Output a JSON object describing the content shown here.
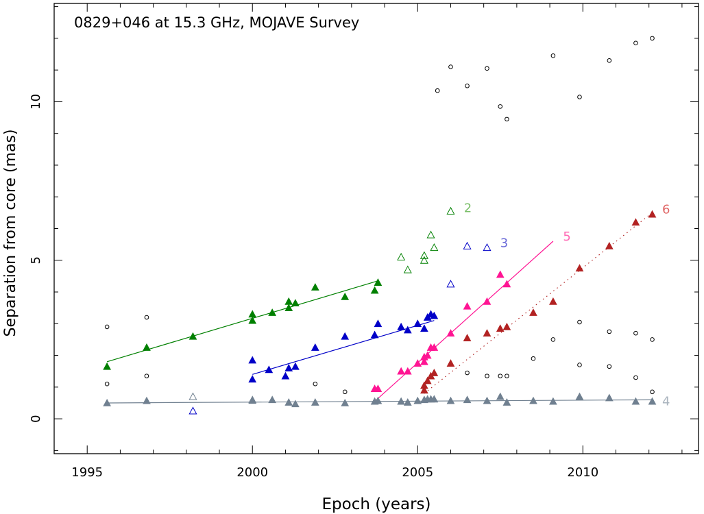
{
  "chart_data": {
    "type": "scatter",
    "title": "0829+046 at 15.3 GHz, MOJAVE Survey",
    "xlabel": "Epoch (years)",
    "ylabel": "Separation from core (mas)",
    "xlim": [
      1994.0,
      2013.5
    ],
    "ylim": [
      -1.1,
      13.1
    ],
    "xticks": [
      1995,
      2000,
      2005,
      2010
    ],
    "yticks": [
      0,
      5,
      10
    ],
    "grid": false,
    "series": [
      {
        "name": "2",
        "color": "#008000",
        "marker": "triangle",
        "points": [
          [
            1995.6,
            1.65
          ],
          [
            1996.8,
            2.25
          ],
          [
            1998.2,
            2.6
          ],
          [
            2000.0,
            3.1
          ],
          [
            2000.0,
            3.3
          ],
          [
            2000.6,
            3.35
          ],
          [
            2001.1,
            3.5
          ],
          [
            2001.1,
            3.7
          ],
          [
            2001.3,
            3.65
          ],
          [
            2001.9,
            4.15
          ],
          [
            2002.8,
            3.85
          ],
          [
            2003.7,
            4.05
          ],
          [
            2003.8,
            4.3
          ]
        ],
        "open_points": [
          [
            2004.5,
            5.1
          ],
          [
            2004.7,
            4.7
          ],
          [
            2005.2,
            5.15
          ],
          [
            2005.2,
            5.0
          ],
          [
            2005.4,
            5.8
          ],
          [
            2005.5,
            5.4
          ],
          [
            2006.0,
            6.55
          ]
        ],
        "fit": [
          [
            1995.6,
            1.8
          ],
          [
            2003.8,
            4.35
          ]
        ],
        "fit_style": "solid"
      },
      {
        "name": "3",
        "color": "#0000c8",
        "marker": "triangle",
        "points": [
          [
            2000.0,
            1.25
          ],
          [
            2000.0,
            1.85
          ],
          [
            2000.5,
            1.55
          ],
          [
            2001.0,
            1.35
          ],
          [
            2001.1,
            1.6
          ],
          [
            2001.3,
            1.65
          ],
          [
            2001.9,
            2.25
          ],
          [
            2002.8,
            2.6
          ],
          [
            2003.7,
            2.65
          ],
          [
            2003.8,
            3.0
          ],
          [
            2004.5,
            2.9
          ],
          [
            2004.7,
            2.8
          ],
          [
            2005.0,
            3.0
          ],
          [
            2005.2,
            2.85
          ],
          [
            2005.3,
            3.2
          ],
          [
            2005.4,
            3.3
          ],
          [
            2005.5,
            3.25
          ]
        ],
        "open_points": [
          [
            1998.2,
            0.25
          ],
          [
            2006.0,
            4.25
          ],
          [
            2006.5,
            5.45
          ],
          [
            2007.1,
            5.4
          ]
        ],
        "fit": [
          [
            2000.0,
            1.4
          ],
          [
            2005.5,
            3.1
          ]
        ],
        "fit_style": "solid"
      },
      {
        "name": "4",
        "color": "#708090",
        "marker": "triangle",
        "points": [
          [
            1995.6,
            0.5
          ],
          [
            1996.8,
            0.57
          ],
          [
            2000.0,
            0.58
          ],
          [
            2000.0,
            0.6
          ],
          [
            2000.6,
            0.6
          ],
          [
            2001.1,
            0.52
          ],
          [
            2001.3,
            0.47
          ],
          [
            2001.9,
            0.52
          ],
          [
            2002.8,
            0.5
          ],
          [
            2003.7,
            0.55
          ],
          [
            2003.8,
            0.57
          ],
          [
            2004.5,
            0.55
          ],
          [
            2004.7,
            0.52
          ],
          [
            2005.0,
            0.57
          ],
          [
            2005.2,
            0.6
          ],
          [
            2005.3,
            0.62
          ],
          [
            2005.4,
            0.62
          ],
          [
            2005.5,
            0.62
          ],
          [
            2006.0,
            0.57
          ],
          [
            2006.5,
            0.6
          ],
          [
            2007.1,
            0.57
          ],
          [
            2007.5,
            0.7
          ],
          [
            2007.7,
            0.52
          ],
          [
            2008.5,
            0.57
          ],
          [
            2009.1,
            0.55
          ],
          [
            2009.9,
            0.7
          ],
          [
            2010.8,
            0.66
          ],
          [
            2011.6,
            0.55
          ],
          [
            2012.1,
            0.55
          ]
        ],
        "open_points": [
          [
            1998.2,
            0.7
          ]
        ],
        "fit": [
          [
            1995.6,
            0.5
          ],
          [
            2012.1,
            0.6
          ]
        ],
        "fit_style": "solid"
      },
      {
        "name": "5",
        "color": "#ff1493",
        "marker": "triangle",
        "points": [
          [
            2003.7,
            0.95
          ],
          [
            2003.8,
            0.95
          ],
          [
            2004.5,
            1.5
          ],
          [
            2004.7,
            1.5
          ],
          [
            2005.0,
            1.75
          ],
          [
            2005.2,
            1.8
          ],
          [
            2005.2,
            1.95
          ],
          [
            2005.3,
            2.0
          ],
          [
            2005.4,
            2.25
          ],
          [
            2005.5,
            2.25
          ],
          [
            2006.0,
            2.7
          ],
          [
            2006.5,
            3.55
          ],
          [
            2007.1,
            3.7
          ],
          [
            2007.5,
            4.55
          ],
          [
            2007.7,
            4.25
          ]
        ],
        "fit": [
          [
            2003.7,
            0.55
          ],
          [
            2009.1,
            5.6
          ]
        ],
        "fit_style": "solid"
      },
      {
        "name": "6",
        "color": "#b22222",
        "marker": "triangle",
        "points": [
          [
            2005.2,
            0.9
          ],
          [
            2005.2,
            1.05
          ],
          [
            2005.3,
            1.2
          ],
          [
            2005.4,
            1.35
          ],
          [
            2005.5,
            1.45
          ],
          [
            2006.0,
            1.75
          ],
          [
            2006.5,
            2.55
          ],
          [
            2007.1,
            2.7
          ],
          [
            2007.5,
            2.85
          ],
          [
            2007.7,
            2.9
          ],
          [
            2008.5,
            3.35
          ],
          [
            2009.1,
            3.7
          ],
          [
            2009.9,
            4.75
          ],
          [
            2010.8,
            5.45
          ],
          [
            2011.6,
            6.2
          ],
          [
            2012.1,
            6.45
          ]
        ],
        "fit": [
          [
            2005.2,
            0.8
          ],
          [
            2012.1,
            6.5
          ]
        ],
        "fit_style": "dotted"
      },
      {
        "name": "",
        "color": "#000000",
        "marker": "circle-open",
        "points": [
          [
            1995.6,
            2.9
          ],
          [
            1995.6,
            1.1
          ],
          [
            1996.8,
            3.2
          ],
          [
            1996.8,
            1.35
          ],
          [
            2001.9,
            1.1
          ],
          [
            2002.8,
            0.85
          ],
          [
            2005.6,
            10.35
          ],
          [
            2006.0,
            11.1
          ],
          [
            2006.5,
            10.5
          ],
          [
            2006.5,
            1.45
          ],
          [
            2007.1,
            11.05
          ],
          [
            2007.1,
            1.35
          ],
          [
            2007.5,
            9.85
          ],
          [
            2007.5,
            1.35
          ],
          [
            2007.7,
            9.45
          ],
          [
            2007.7,
            1.35
          ],
          [
            2008.5,
            1.9
          ],
          [
            2009.1,
            11.45
          ],
          [
            2009.1,
            2.5
          ],
          [
            2009.9,
            10.15
          ],
          [
            2009.9,
            3.05
          ],
          [
            2009.9,
            1.7
          ],
          [
            2010.8,
            11.3
          ],
          [
            2010.8,
            2.75
          ],
          [
            2010.8,
            1.65
          ],
          [
            2011.6,
            11.85
          ],
          [
            2011.6,
            2.7
          ],
          [
            2011.6,
            1.3
          ],
          [
            2012.1,
            12.0
          ],
          [
            2012.1,
            2.5
          ],
          [
            2012.1,
            0.85
          ]
        ]
      }
    ],
    "labels": [
      {
        "text": "2",
        "x": 2006.4,
        "y": 6.65,
        "color": "#7bbf6a"
      },
      {
        "text": "3",
        "x": 2007.5,
        "y": 5.55,
        "color": "#6a6ad8"
      },
      {
        "text": "5",
        "x": 2009.4,
        "y": 5.75,
        "color": "#ff69b4"
      },
      {
        "text": "6",
        "x": 2012.4,
        "y": 6.6,
        "color": "#e06666"
      },
      {
        "text": "4",
        "x": 2012.4,
        "y": 0.55,
        "color": "#aab4be"
      }
    ]
  }
}
